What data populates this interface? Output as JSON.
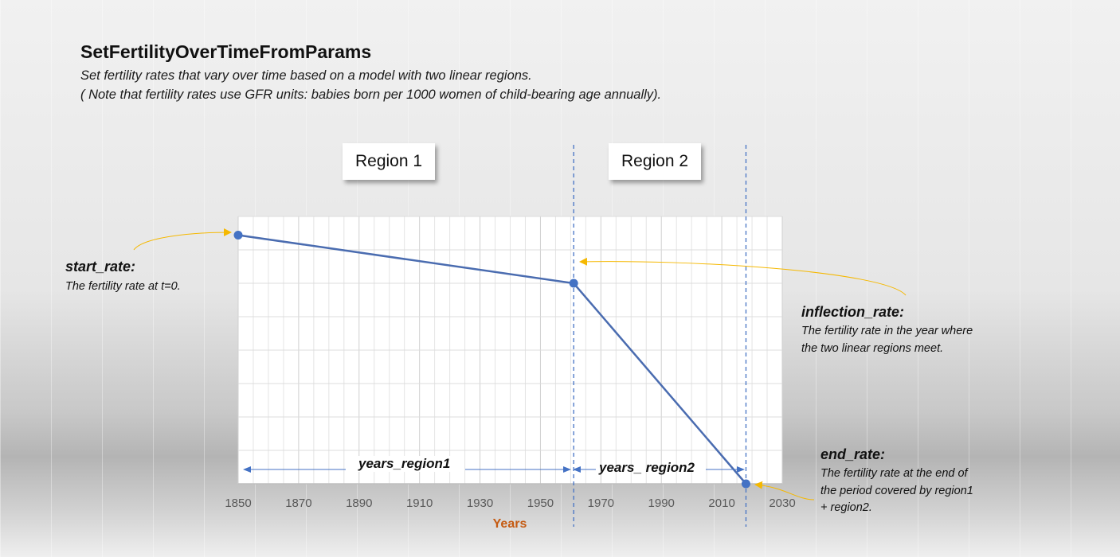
{
  "title": "SetFertilityOverTimeFromParams",
  "subtitle_line1": "Set fertility rates that vary over time based on a model with two linear regions.",
  "subtitle_line2": "( Note that fertility rates use GFR units: babies born per 1000 women of child-bearing age annually).",
  "regions": {
    "region1": "Region 1",
    "region2": "Region 2"
  },
  "params": {
    "start_rate": {
      "label": "start_rate:",
      "desc": "The fertility rate at t=0."
    },
    "inflection_rate": {
      "label": "inflection_rate:",
      "desc_line1": "The fertility rate in the year where",
      "desc_line2": "the two linear regions meet."
    },
    "end_rate": {
      "label": "end_rate:",
      "desc_line1": "The fertility rate at the end of",
      "desc_line2": "the period covered by region1",
      "desc_line3": "+ region2."
    }
  },
  "spans": {
    "years_region1": "years_region1",
    "years_region2": "years_ region2"
  },
  "chart_data": {
    "type": "line",
    "xlabel": "Years",
    "xlim": [
      1850,
      2030
    ],
    "x_ticks": [
      "1850",
      "1870",
      "1890",
      "1910",
      "1930",
      "1950",
      "1970",
      "1990",
      "2010",
      "2030"
    ],
    "series": [
      {
        "x": [
          1850,
          1961,
          2018
        ],
        "y": [
          0.93,
          0.75,
          0.0
        ]
      }
    ],
    "boundaries": [
      1961,
      2018
    ],
    "grid": true,
    "colors": {
      "line": "#4a6cb0",
      "marker": "#4472c4",
      "dashed": "#4472c4",
      "arrow_annotation": "#f5b800",
      "span_arrow": "#4472c4",
      "xlabel": "#c55a11"
    }
  }
}
